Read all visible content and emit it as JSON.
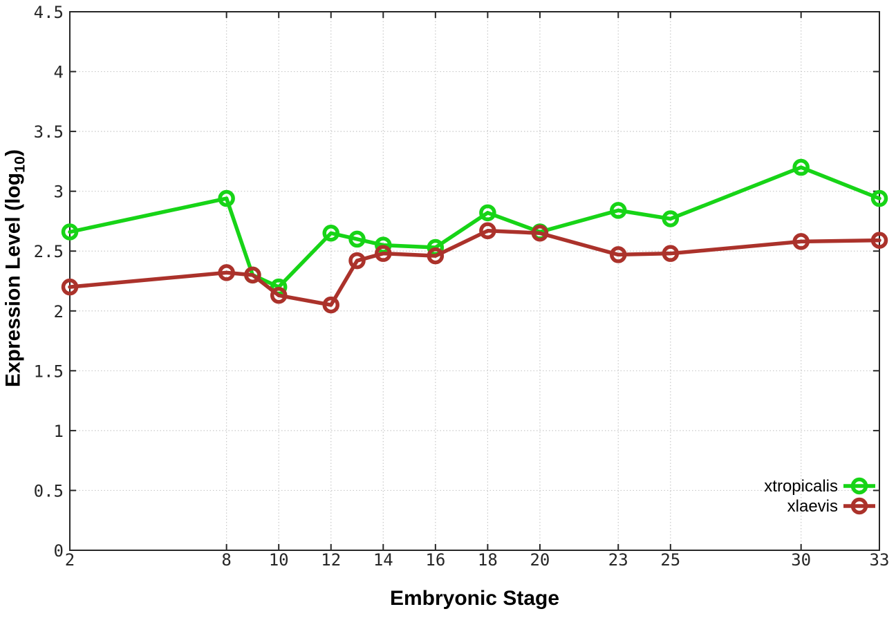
{
  "page": {
    "background": "#ffffff"
  },
  "chart_data": {
    "type": "line",
    "title": "",
    "xlabel": "Embryonic Stage",
    "ylabel": "Expression Level (log10)",
    "ylabel_prefix": "Expression Level (log",
    "ylabel_sub": "10",
    "ylabel_suffix": ")",
    "x": [
      2,
      8,
      9,
      10,
      12,
      13,
      14,
      16,
      18,
      20,
      23,
      25,
      30,
      33
    ],
    "series": [
      {
        "name": "xtropicalis",
        "color": "#17d417",
        "values": [
          2.66,
          2.94,
          2.3,
          2.2,
          2.65,
          2.6,
          2.55,
          2.53,
          2.82,
          2.66,
          2.84,
          2.77,
          3.2,
          2.94
        ]
      },
      {
        "name": "xlaevis",
        "color": "#ab322b",
        "values": [
          2.2,
          2.32,
          2.3,
          2.13,
          2.05,
          2.42,
          2.48,
          2.46,
          2.67,
          2.65,
          2.47,
          2.48,
          2.58,
          2.59
        ]
      }
    ],
    "x_ticks": [
      2,
      8,
      10,
      12,
      14,
      16,
      18,
      20,
      23,
      25,
      30,
      33
    ],
    "y_ticks": [
      0,
      0.5,
      1,
      1.5,
      2,
      2.5,
      3,
      3.5,
      4,
      4.5
    ],
    "xlim": [
      2,
      33
    ],
    "ylim": [
      0,
      4.5
    ],
    "grid": true,
    "legend_position": "inside bottom-right",
    "legend": [
      "xtropicalis",
      "xlaevis"
    ],
    "colors": {
      "grid": "#c8c8c8",
      "axis": "#262626",
      "tick_text": "#262626"
    },
    "marker": "open-circle"
  }
}
